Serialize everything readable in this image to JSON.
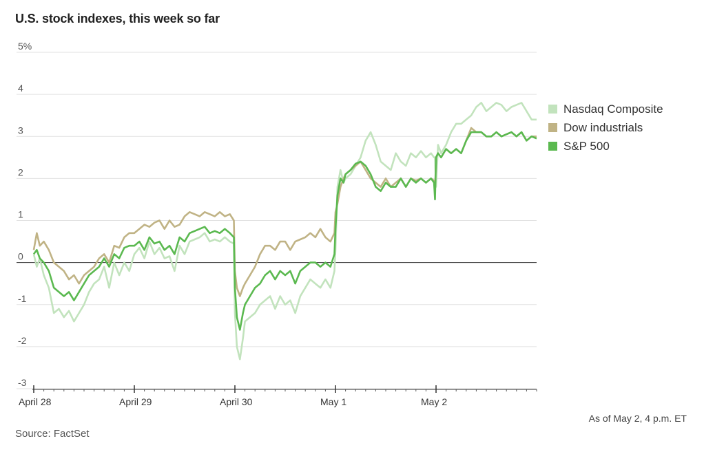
{
  "chart_data": {
    "type": "line",
    "title": "U.S. stock indexes, this week so far",
    "note": "As of May 2, 4 p.m. ET",
    "source": "Source: FactSet",
    "ylim": [
      -3,
      5
    ],
    "y_ticks": [
      {
        "value": 5,
        "label": "5%"
      },
      {
        "value": 4,
        "label": "4"
      },
      {
        "value": 3,
        "label": "3"
      },
      {
        "value": 2,
        "label": "2"
      },
      {
        "value": 1,
        "label": "1"
      },
      {
        "value": 0,
        "label": "0"
      },
      {
        "value": -1,
        "label": "-1"
      },
      {
        "value": -2,
        "label": "-2"
      },
      {
        "value": -3,
        "label": "-3"
      }
    ],
    "x_ticks": [
      {
        "value": 0,
        "label": "April 28"
      },
      {
        "value": 1,
        "label": "April 29"
      },
      {
        "value": 2,
        "label": "April 30"
      },
      {
        "value": 3,
        "label": "May 1"
      },
      {
        "value": 4,
        "label": "May 2"
      }
    ],
    "xlim": [
      0,
      5
    ],
    "grid": true,
    "legend_position": "right",
    "series": [
      {
        "name": "Nasdaq Composite",
        "color": "#c2e3bd",
        "x": [
          0,
          0.03,
          0.06,
          0.1,
          0.15,
          0.2,
          0.25,
          0.3,
          0.35,
          0.4,
          0.45,
          0.5,
          0.55,
          0.6,
          0.65,
          0.7,
          0.75,
          0.8,
          0.85,
          0.9,
          0.95,
          1.0,
          1.05,
          1.1,
          1.15,
          1.2,
          1.25,
          1.3,
          1.35,
          1.4,
          1.45,
          1.5,
          1.55,
          1.6,
          1.65,
          1.7,
          1.75,
          1.8,
          1.85,
          1.9,
          1.95,
          1.99,
          2.0,
          2.02,
          2.05,
          2.08,
          2.1,
          2.15,
          2.2,
          2.25,
          2.3,
          2.35,
          2.4,
          2.45,
          2.5,
          2.55,
          2.6,
          2.65,
          2.7,
          2.75,
          2.8,
          2.85,
          2.9,
          2.95,
          2.99,
          3.0,
          3.02,
          3.05,
          3.08,
          3.1,
          3.15,
          3.2,
          3.25,
          3.3,
          3.35,
          3.4,
          3.45,
          3.5,
          3.55,
          3.6,
          3.65,
          3.7,
          3.75,
          3.8,
          3.85,
          3.9,
          3.95,
          3.98,
          3.99,
          4.0,
          4.02,
          4.05,
          4.1,
          4.15,
          4.2,
          4.25,
          4.3,
          4.35,
          4.4,
          4.45,
          4.5,
          4.55,
          4.6,
          4.65,
          4.7,
          4.75,
          4.8,
          4.85,
          4.9,
          4.95,
          5.0
        ],
        "y": [
          0.2,
          -0.1,
          0.1,
          -0.3,
          -0.6,
          -1.2,
          -1.1,
          -1.3,
          -1.15,
          -1.4,
          -1.2,
          -1.0,
          -0.7,
          -0.5,
          -0.4,
          -0.1,
          -0.6,
          0.0,
          -0.3,
          0.0,
          -0.2,
          0.2,
          0.35,
          0.1,
          0.5,
          0.2,
          0.35,
          0.1,
          0.15,
          -0.2,
          0.4,
          0.2,
          0.5,
          0.55,
          0.6,
          0.7,
          0.5,
          0.55,
          0.5,
          0.6,
          0.5,
          0.45,
          -1.2,
          -2.0,
          -2.3,
          -1.8,
          -1.4,
          -1.3,
          -1.2,
          -1.0,
          -0.9,
          -0.8,
          -1.1,
          -0.8,
          -1.0,
          -0.9,
          -1.2,
          -0.8,
          -0.6,
          -0.4,
          -0.5,
          -0.6,
          -0.4,
          -0.6,
          -0.2,
          0.3,
          1.8,
          2.2,
          1.9,
          2.0,
          2.1,
          2.3,
          2.5,
          2.9,
          3.1,
          2.8,
          2.4,
          2.3,
          2.2,
          2.6,
          2.4,
          2.3,
          2.6,
          2.5,
          2.65,
          2.5,
          2.6,
          2.5,
          2.5,
          1.8,
          2.8,
          2.6,
          2.8,
          3.1,
          3.3,
          3.3,
          3.4,
          3.5,
          3.7,
          3.8,
          3.6,
          3.7,
          3.8,
          3.75,
          3.6,
          3.7,
          3.75,
          3.8,
          3.6,
          3.4,
          3.4
        ]
      },
      {
        "name": "Dow industrials",
        "color": "#c0b385",
        "x": [
          0,
          0.03,
          0.06,
          0.1,
          0.15,
          0.2,
          0.25,
          0.3,
          0.35,
          0.4,
          0.45,
          0.5,
          0.55,
          0.6,
          0.65,
          0.7,
          0.75,
          0.8,
          0.85,
          0.9,
          0.95,
          1.0,
          1.05,
          1.1,
          1.15,
          1.2,
          1.25,
          1.3,
          1.35,
          1.4,
          1.45,
          1.5,
          1.55,
          1.6,
          1.65,
          1.7,
          1.75,
          1.8,
          1.85,
          1.9,
          1.95,
          1.99,
          2.0,
          2.02,
          2.05,
          2.08,
          2.1,
          2.15,
          2.2,
          2.25,
          2.3,
          2.35,
          2.4,
          2.45,
          2.5,
          2.55,
          2.6,
          2.65,
          2.7,
          2.75,
          2.8,
          2.85,
          2.9,
          2.95,
          2.99,
          3.0,
          3.02,
          3.05,
          3.08,
          3.1,
          3.15,
          3.2,
          3.25,
          3.3,
          3.35,
          3.4,
          3.45,
          3.5,
          3.55,
          3.6,
          3.65,
          3.7,
          3.75,
          3.8,
          3.85,
          3.9,
          3.95,
          3.98,
          3.99,
          4.0,
          4.02,
          4.05,
          4.1,
          4.15,
          4.2,
          4.25,
          4.3,
          4.35,
          4.4,
          4.45,
          4.5,
          4.55,
          4.6,
          4.65,
          4.7,
          4.75,
          4.8,
          4.85,
          4.9,
          4.95,
          5.0
        ],
        "y": [
          0.3,
          0.7,
          0.4,
          0.5,
          0.3,
          0.0,
          -0.1,
          -0.2,
          -0.4,
          -0.3,
          -0.5,
          -0.3,
          -0.2,
          -0.1,
          0.1,
          0.2,
          0.0,
          0.4,
          0.35,
          0.6,
          0.7,
          0.7,
          0.8,
          0.9,
          0.85,
          0.95,
          1.0,
          0.8,
          1.0,
          0.85,
          0.9,
          1.1,
          1.2,
          1.15,
          1.1,
          1.2,
          1.15,
          1.1,
          1.2,
          1.1,
          1.15,
          1.0,
          -0.2,
          -0.6,
          -0.8,
          -0.6,
          -0.5,
          -0.3,
          -0.1,
          0.2,
          0.4,
          0.4,
          0.3,
          0.5,
          0.5,
          0.3,
          0.5,
          0.55,
          0.6,
          0.7,
          0.6,
          0.8,
          0.6,
          0.5,
          0.7,
          1.2,
          1.4,
          1.8,
          2.0,
          2.1,
          2.2,
          2.3,
          2.4,
          2.2,
          2.0,
          1.9,
          1.8,
          2.0,
          1.8,
          1.9,
          2.0,
          1.8,
          2.0,
          1.95,
          2.0,
          1.9,
          2.0,
          1.95,
          1.7,
          2.5,
          2.6,
          2.5,
          2.7,
          2.6,
          2.7,
          2.6,
          2.9,
          3.2,
          3.1,
          3.1,
          3.0,
          3.0,
          3.1,
          3.0,
          3.05,
          3.1,
          3.0,
          3.1,
          2.9,
          3.0,
          3.0
        ]
      },
      {
        "name": "S&P 500",
        "color": "#5bb950",
        "x": [
          0,
          0.03,
          0.06,
          0.1,
          0.15,
          0.2,
          0.25,
          0.3,
          0.35,
          0.4,
          0.45,
          0.5,
          0.55,
          0.6,
          0.65,
          0.7,
          0.75,
          0.8,
          0.85,
          0.9,
          0.95,
          1.0,
          1.05,
          1.1,
          1.15,
          1.2,
          1.25,
          1.3,
          1.35,
          1.4,
          1.45,
          1.5,
          1.55,
          1.6,
          1.65,
          1.7,
          1.75,
          1.8,
          1.85,
          1.9,
          1.95,
          1.99,
          2.0,
          2.02,
          2.05,
          2.08,
          2.1,
          2.15,
          2.2,
          2.25,
          2.3,
          2.35,
          2.4,
          2.45,
          2.5,
          2.55,
          2.6,
          2.65,
          2.7,
          2.75,
          2.8,
          2.85,
          2.9,
          2.95,
          2.99,
          3.0,
          3.02,
          3.05,
          3.08,
          3.1,
          3.15,
          3.2,
          3.25,
          3.3,
          3.35,
          3.4,
          3.45,
          3.5,
          3.55,
          3.6,
          3.65,
          3.7,
          3.75,
          3.8,
          3.85,
          3.9,
          3.95,
          3.98,
          3.99,
          4.0,
          4.02,
          4.05,
          4.1,
          4.15,
          4.2,
          4.25,
          4.3,
          4.35,
          4.4,
          4.45,
          4.5,
          4.55,
          4.6,
          4.65,
          4.7,
          4.75,
          4.8,
          4.85,
          4.9,
          4.95,
          5.0
        ],
        "y": [
          0.2,
          0.3,
          0.1,
          0.0,
          -0.2,
          -0.6,
          -0.7,
          -0.8,
          -0.7,
          -0.9,
          -0.7,
          -0.5,
          -0.3,
          -0.2,
          -0.1,
          0.1,
          -0.1,
          0.2,
          0.1,
          0.35,
          0.4,
          0.4,
          0.5,
          0.3,
          0.6,
          0.45,
          0.5,
          0.3,
          0.4,
          0.2,
          0.6,
          0.5,
          0.7,
          0.75,
          0.8,
          0.85,
          0.7,
          0.75,
          0.7,
          0.8,
          0.7,
          0.6,
          -0.6,
          -1.3,
          -1.6,
          -1.2,
          -1.0,
          -0.8,
          -0.6,
          -0.5,
          -0.3,
          -0.2,
          -0.4,
          -0.2,
          -0.3,
          -0.2,
          -0.5,
          -0.2,
          -0.1,
          0.0,
          0.0,
          -0.1,
          0.0,
          -0.1,
          0.2,
          0.8,
          1.6,
          2.0,
          1.9,
          2.1,
          2.2,
          2.35,
          2.4,
          2.3,
          2.1,
          1.8,
          1.7,
          1.9,
          1.8,
          1.8,
          2.0,
          1.8,
          2.0,
          1.9,
          2.0,
          1.9,
          2.0,
          1.9,
          1.5,
          2.5,
          2.6,
          2.5,
          2.7,
          2.6,
          2.7,
          2.6,
          2.9,
          3.1,
          3.1,
          3.1,
          3.0,
          3.0,
          3.1,
          3.0,
          3.05,
          3.1,
          3.0,
          3.1,
          2.9,
          3.0,
          2.95
        ]
      }
    ]
  }
}
